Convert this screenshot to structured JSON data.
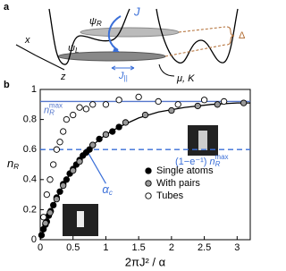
{
  "panel_a": {
    "label": "a",
    "psi_R": {
      "symbol": "ψ",
      "sub": "R"
    },
    "psi_L": {
      "symbol": "ψ",
      "sub": "L"
    },
    "J": "J",
    "J_par": {
      "symbol": "J",
      "sub": "||"
    },
    "x": "x",
    "z": "z",
    "mu_K": "μ, K",
    "Delta": "Δ"
  },
  "chart_data": {
    "type": "scatter",
    "label": "b",
    "xlabel": "2πJ² / α",
    "ylabel": {
      "symbol": "n",
      "sub": "R"
    },
    "xlim": [
      0,
      3.2
    ],
    "ylim": [
      0,
      1
    ],
    "xticks": [
      0,
      0.5,
      1,
      1.5,
      2,
      2.5,
      3
    ],
    "yticks": [
      0,
      0.2,
      0.4,
      0.6,
      0.8,
      1
    ],
    "legend": "lower right",
    "series": [
      {
        "name": "Single atoms",
        "color": "#000000",
        "x": [
          0.02,
          0.05,
          0.08,
          0.1,
          0.13,
          0.16,
          0.2,
          0.25,
          0.3,
          0.35,
          0.4,
          0.45,
          0.5,
          0.55,
          0.6,
          0.65,
          0.7,
          0.75,
          0.8,
          0.9,
          1.0,
          1.1,
          1.2
        ],
        "values": [
          0.03,
          0.07,
          0.1,
          0.12,
          0.16,
          0.19,
          0.23,
          0.28,
          0.32,
          0.37,
          0.4,
          0.44,
          0.47,
          0.5,
          0.53,
          0.56,
          0.58,
          0.6,
          0.63,
          0.67,
          0.7,
          0.72,
          0.75
        ]
      },
      {
        "name": "With pairs",
        "color": "#999999",
        "x": [
          0.08,
          0.15,
          0.25,
          0.35,
          0.5,
          0.6,
          0.8,
          1.0,
          1.3,
          1.6,
          2.0,
          2.4,
          2.7,
          3.1
        ],
        "values": [
          0.11,
          0.18,
          0.27,
          0.36,
          0.46,
          0.52,
          0.63,
          0.7,
          0.78,
          0.83,
          0.86,
          0.89,
          0.9,
          0.91
        ]
      },
      {
        "name": "Tubes",
        "color": "#ffffff",
        "x": [
          0.05,
          0.1,
          0.15,
          0.2,
          0.25,
          0.3,
          0.35,
          0.4,
          0.5,
          0.6,
          0.7,
          0.8,
          1.0,
          1.2,
          1.5,
          1.8,
          2.1,
          2.5,
          2.8
        ],
        "values": [
          0.15,
          0.3,
          0.4,
          0.5,
          0.6,
          0.65,
          0.72,
          0.8,
          0.83,
          0.88,
          0.87,
          0.9,
          0.9,
          0.93,
          0.95,
          0.92,
          0.9,
          0.93,
          0.92
        ]
      }
    ],
    "fit": {
      "color": "#000000",
      "x": [
        0,
        0.1,
        0.2,
        0.3,
        0.4,
        0.5,
        0.6,
        0.7,
        0.8,
        1.0,
        1.2,
        1.5,
        1.8,
        2.2,
        2.6,
        3.0,
        3.2
      ],
      "values": [
        0,
        0.12,
        0.23,
        0.32,
        0.4,
        0.47,
        0.53,
        0.58,
        0.63,
        0.7,
        0.75,
        0.81,
        0.85,
        0.88,
        0.9,
        0.91,
        0.91
      ]
    },
    "hlines": [
      {
        "value": 0.92,
        "style": "solid",
        "color": "#5577cc",
        "label": {
          "symbol": "n",
          "sub": "R",
          "sup": "max"
        }
      },
      {
        "value": 0.6,
        "style": "dashed",
        "color": "#3a6fd8",
        "label": {
          "prefix": "(1−e⁻¹) ",
          "symbol": "n",
          "sub": "R",
          "sup": "max"
        }
      }
    ],
    "alpha_c": {
      "value": 0.7,
      "symbol": "α",
      "sub": "c",
      "color": "#3a6fd8"
    }
  }
}
